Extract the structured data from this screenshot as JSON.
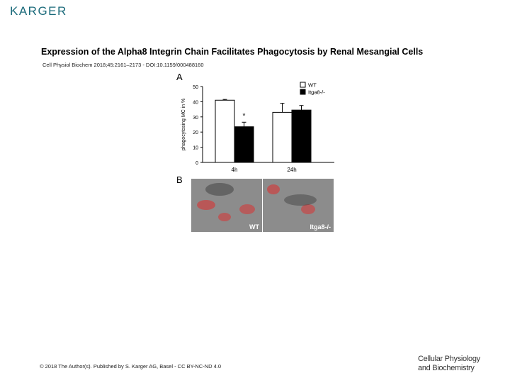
{
  "header": {
    "publisher": "KARGER"
  },
  "title": "Expression of the Alpha8 Integrin Chain Facilitates Phagocytosis by Renal Mesangial Cells",
  "citation": "Cell Physiol Biochem 2018;45:2161–2173 - DOI:10.1159/000488160",
  "figure": {
    "panel_a_label": "A",
    "panel_b_label": "B",
    "micrographs": [
      {
        "label": "WT"
      },
      {
        "label": "Itga8-/-"
      }
    ]
  },
  "chart_data": {
    "type": "bar",
    "categories": [
      "4h",
      "24h"
    ],
    "series": [
      {
        "name": "WT",
        "values": [
          41,
          33
        ],
        "errors": [
          0.5,
          6
        ],
        "color": "#ffffff"
      },
      {
        "name": "Itga8-/-",
        "values": [
          23.5,
          34.5
        ],
        "errors": [
          3,
          3
        ],
        "color": "#000000"
      }
    ],
    "ylabel": "phagocytosing MC in %",
    "ylim": [
      0,
      50
    ],
    "yticks": [
      0,
      10,
      20,
      30,
      40,
      50
    ],
    "annotations": [
      {
        "category": "4h",
        "series": "Itga8-/-",
        "text": "*"
      }
    ],
    "legend": "top-right"
  },
  "footer": {
    "copyright": "© 2018 The Author(s). Published by S. Karger AG, Basel - CC BY-NC-ND 4.0",
    "journal_line1": "Cellular Physiology",
    "journal_line2": "and Biochemistry"
  }
}
